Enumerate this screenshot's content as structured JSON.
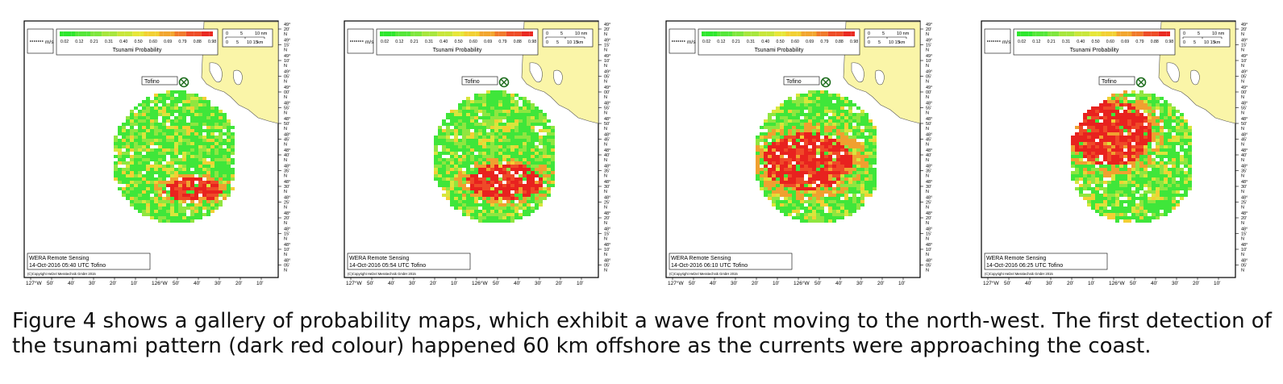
{
  "scale_bar": {
    "speed_unit": "m/s",
    "nm_labels": [
      "0",
      "5",
      "10 nm"
    ],
    "km_labels": [
      "0",
      "5",
      "10 15",
      "km"
    ]
  },
  "legend": {
    "title": "Tsunami Probability",
    "ticks": [
      "0.02",
      "0.12",
      "0.21",
      "0.31",
      "0.40",
      "0.50",
      "0.60",
      "0.69",
      "0.79",
      "0.88",
      "0.98"
    ],
    "colors": [
      "#2ee62e",
      "#55e63a",
      "#7fe63f",
      "#a7e63f",
      "#c8e63c",
      "#e6e63a",
      "#f2d034",
      "#f2a630",
      "#f07a2c",
      "#ee4d28",
      "#ea2a22"
    ]
  },
  "place_label": "Tofino",
  "lat_ticks": [
    "49°\n20'\nN",
    "49°\n15'\nN",
    "49°\n10'\nN",
    "49°\n05'\nN",
    "49°\n00'\nN",
    "48°\n55'\nN",
    "48°\n50'\nN",
    "48°\n45'\nN",
    "48°\n40'\nN",
    "48°\n35'\nN",
    "48°\n30'\nN",
    "48°\n25'\nN",
    "48°\n20'\nN",
    "48°\n15'\nN",
    "48°\n10'\nN",
    "48°\n05'\nN"
  ],
  "lon_ticks": [
    "127°W",
    "50'",
    "40'",
    "30'",
    "20'",
    "10'",
    "126°W",
    "50'",
    "40'",
    "30'",
    "20'",
    "10'"
  ],
  "info_box": {
    "org": "WERA Remote Sensing",
    "copyright": "(C)Copyright Helzel Messtechnik GmbH 2015"
  },
  "panels": [
    {
      "timestamp": "14-Oct-2016 05:40 UTC  Tofino"
    },
    {
      "timestamp": "14-Oct-2016 05:54 UTC  Tofino"
    },
    {
      "timestamp": "14-Oct-2016 06:10 UTC  Tofino"
    },
    {
      "timestamp": "14-Oct-2016 06:25 UTC  Tofino"
    }
  ],
  "caption": {
    "line1": "Figure 4 shows a gallery of probability maps, which exhibit a wave front moving to the north-west. The first detection of",
    "line2": "the tsunami pattern (dark red colour) happened 60 km offshore as the currents were approaching the coast."
  }
}
